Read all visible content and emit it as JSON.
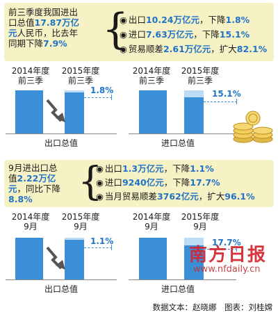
{
  "section1": {
    "intro": {
      "line1": "前三季度我国进出",
      "line2a": "口总值",
      "line2b": "17.87万亿",
      "line3a": "元",
      "line3b": "人民币，比去年",
      "line4a": "同期下降",
      "line4b": "7.9%"
    },
    "stats": [
      {
        "label": "出口",
        "value": "10.24万亿元",
        "rest": "，下降",
        "pct": "1.8%"
      },
      {
        "label": "进口",
        "value": "7.63万亿元",
        "rest": "，下降",
        "pct": "15.1%"
      },
      {
        "label": "贸易顺差",
        "value": "2.61万亿元",
        "rest": "，扩大",
        "pct": "82.1%"
      }
    ]
  },
  "section2": {
    "intro": {
      "line1": "9月进出口总",
      "line2a": "值",
      "line2b": "2.22万亿",
      "line3a": "元",
      "line3b": "，同比下降",
      "line4a": "8.8%"
    },
    "stats": [
      {
        "label": "出口",
        "value": "1.3万亿元",
        "rest": "，下降",
        "pct": "1.1%"
      },
      {
        "label": "进口",
        "value": "9240亿元",
        "rest": "，下降",
        "pct": "17.7%"
      },
      {
        "label": "当月贸易顺差",
        "value": "3762亿元",
        "rest": "，扩大",
        "pct": "96.1%"
      }
    ]
  },
  "chart_data": [
    {
      "type": "bar",
      "title": "出口总值",
      "categories": [
        "2014年度前三季",
        "2015年度前三季"
      ],
      "change_label": "1.8%",
      "values": [
        100,
        98.2
      ]
    },
    {
      "type": "bar",
      "title": "进口总值",
      "categories": [
        "2014年度前三季",
        "2015年度前三季"
      ],
      "change_label": "15.1%",
      "values": [
        100,
        84.9
      ]
    },
    {
      "type": "bar",
      "title": "出口总值",
      "categories": [
        "2014年度9月",
        "2015年度9月"
      ],
      "change_label": "1.1%",
      "values": [
        100,
        98.9
      ]
    },
    {
      "type": "bar",
      "title": "进口总值",
      "categories": [
        "2014年度9月",
        "2015年度9月"
      ],
      "change_label": "17.7%",
      "values": [
        100,
        82.3
      ]
    }
  ],
  "labels": {
    "y2014": "2014年度",
    "y2015": "2015年度",
    "q3": "前三季",
    "sep": "9月"
  },
  "footer": "数据文本：赵晓娜　图表：刘桂嫦",
  "watermark": {
    "text": "南方日报",
    "url": "www.nfdaily.cn"
  },
  "colors": {
    "bar": "#3b8fd9",
    "bar_light": "#bcdcf6",
    "highlight": "#1f73c6",
    "box": "#f7f2c6"
  }
}
